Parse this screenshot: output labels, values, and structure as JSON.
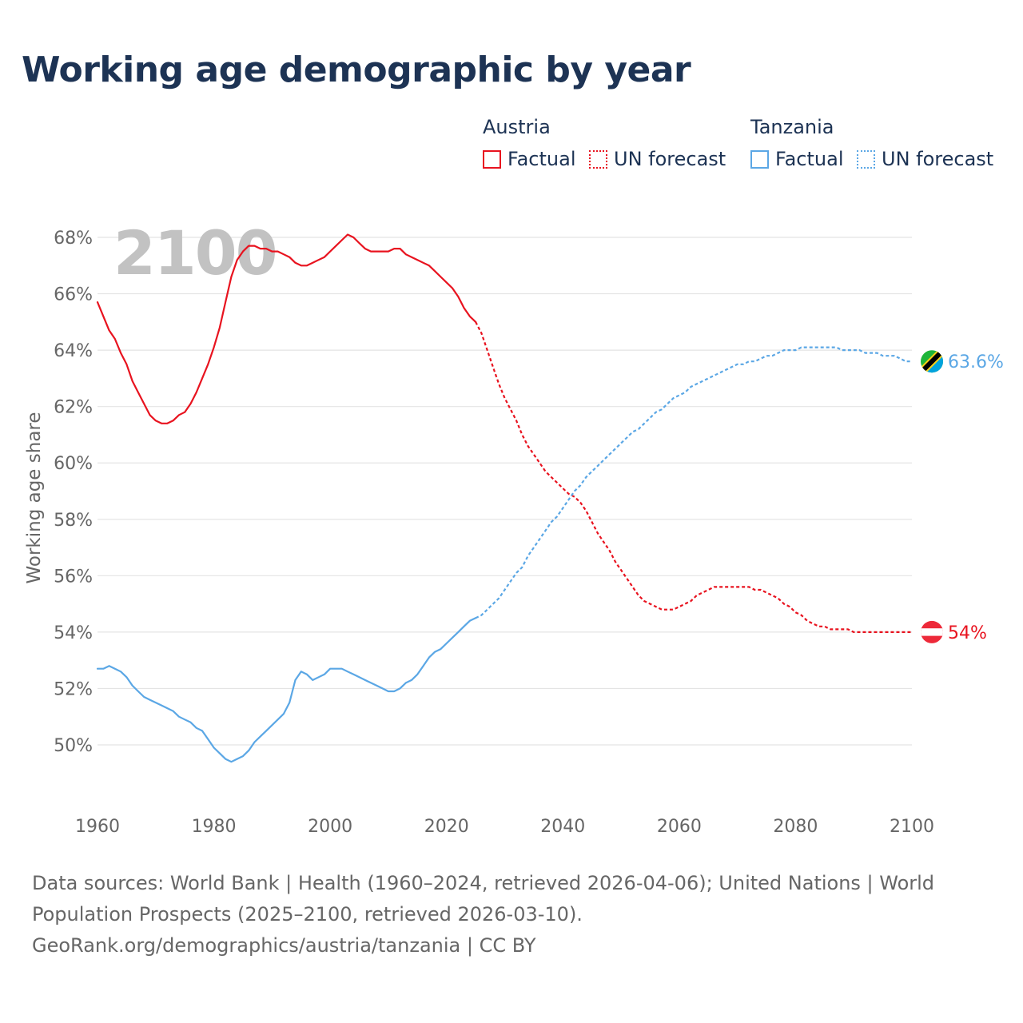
{
  "title": "Working age demographic by year",
  "legend": {
    "austria": {
      "name": "Austria",
      "factual": "Factual",
      "forecast": "UN forecast",
      "color": "#e8131f"
    },
    "tanzania": {
      "name": "Tanzania",
      "factual": "Factual",
      "forecast": "UN forecast",
      "color": "#5ba7e5"
    }
  },
  "year_watermark": "2100",
  "end_labels": {
    "austria": "54%",
    "tanzania": "63.6%"
  },
  "footer": {
    "sources": "Data sources: World Bank | Health (1960–2024, retrieved 2026-04-06); United Nations | World Population Prospects (2025–2100, retrieved 2026-03-10).",
    "credit": "GeoRank.org/demographics/austria/tanzania | CC BY"
  },
  "chart_data": {
    "type": "line",
    "title": "Working age demographic by year",
    "xlabel": "",
    "ylabel": "Working age share",
    "xlim": [
      1960,
      2100
    ],
    "ylim": [
      48,
      68
    ],
    "x_ticks": [
      1960,
      1980,
      2000,
      2020,
      2040,
      2060,
      2080,
      2100
    ],
    "y_ticks": [
      50,
      52,
      54,
      56,
      58,
      60,
      62,
      64,
      66,
      68
    ],
    "y_tick_suffix": "%",
    "series": [
      {
        "name": "Austria — Factual",
        "color": "#e8131f",
        "style": "solid",
        "points": [
          [
            1960,
            65.7
          ],
          [
            1962,
            64.7
          ],
          [
            1963,
            64.4
          ],
          [
            1964,
            63.9
          ],
          [
            1965,
            63.5
          ],
          [
            1966,
            62.9
          ],
          [
            1967,
            62.5
          ],
          [
            1968,
            62.1
          ],
          [
            1969,
            61.7
          ],
          [
            1970,
            61.5
          ],
          [
            1971,
            61.4
          ],
          [
            1972,
            61.4
          ],
          [
            1973,
            61.5
          ],
          [
            1974,
            61.7
          ],
          [
            1975,
            61.8
          ],
          [
            1976,
            62.1
          ],
          [
            1977,
            62.5
          ],
          [
            1978,
            63.0
          ],
          [
            1979,
            63.5
          ],
          [
            1980,
            64.1
          ],
          [
            1981,
            64.8
          ],
          [
            1982,
            65.7
          ],
          [
            1983,
            66.6
          ],
          [
            1984,
            67.2
          ],
          [
            1985,
            67.5
          ],
          [
            1986,
            67.7
          ],
          [
            1987,
            67.7
          ],
          [
            1988,
            67.6
          ],
          [
            1989,
            67.6
          ],
          [
            1990,
            67.5
          ],
          [
            1991,
            67.5
          ],
          [
            1992,
            67.4
          ],
          [
            1993,
            67.3
          ],
          [
            1994,
            67.1
          ],
          [
            1995,
            67.0
          ],
          [
            1996,
            67.0
          ],
          [
            1997,
            67.1
          ],
          [
            1998,
            67.2
          ],
          [
            1999,
            67.3
          ],
          [
            2000,
            67.5
          ],
          [
            2001,
            67.7
          ],
          [
            2002,
            67.9
          ],
          [
            2003,
            68.1
          ],
          [
            2004,
            68.0
          ],
          [
            2005,
            67.8
          ],
          [
            2006,
            67.6
          ],
          [
            2007,
            67.5
          ],
          [
            2008,
            67.5
          ],
          [
            2009,
            67.5
          ],
          [
            2010,
            67.5
          ],
          [
            2011,
            67.6
          ],
          [
            2012,
            67.6
          ],
          [
            2013,
            67.4
          ],
          [
            2014,
            67.3
          ],
          [
            2015,
            67.2
          ],
          [
            2016,
            67.1
          ],
          [
            2017,
            67.0
          ],
          [
            2018,
            66.8
          ],
          [
            2019,
            66.6
          ],
          [
            2020,
            66.4
          ],
          [
            2021,
            66.2
          ],
          [
            2022,
            65.9
          ],
          [
            2023,
            65.5
          ],
          [
            2024,
            65.2
          ],
          [
            2025,
            65.0
          ]
        ]
      },
      {
        "name": "Austria — UN forecast",
        "color": "#e8131f",
        "style": "dashed",
        "points": [
          [
            2025,
            65.0
          ],
          [
            2026,
            64.6
          ],
          [
            2027,
            64.0
          ],
          [
            2028,
            63.4
          ],
          [
            2029,
            62.8
          ],
          [
            2030,
            62.3
          ],
          [
            2031,
            61.9
          ],
          [
            2032,
            61.5
          ],
          [
            2033,
            61.0
          ],
          [
            2034,
            60.6
          ],
          [
            2035,
            60.3
          ],
          [
            2036,
            60.0
          ],
          [
            2037,
            59.7
          ],
          [
            2038,
            59.5
          ],
          [
            2039,
            59.3
          ],
          [
            2040,
            59.1
          ],
          [
            2041,
            58.9
          ],
          [
            2042,
            58.8
          ],
          [
            2043,
            58.6
          ],
          [
            2044,
            58.3
          ],
          [
            2045,
            57.9
          ],
          [
            2046,
            57.5
          ],
          [
            2047,
            57.2
          ],
          [
            2048,
            56.9
          ],
          [
            2049,
            56.5
          ],
          [
            2050,
            56.2
          ],
          [
            2051,
            55.9
          ],
          [
            2052,
            55.6
          ],
          [
            2053,
            55.3
          ],
          [
            2054,
            55.1
          ],
          [
            2055,
            55.0
          ],
          [
            2056,
            54.9
          ],
          [
            2057,
            54.8
          ],
          [
            2058,
            54.8
          ],
          [
            2059,
            54.8
          ],
          [
            2060,
            54.9
          ],
          [
            2061,
            55.0
          ],
          [
            2062,
            55.1
          ],
          [
            2063,
            55.3
          ],
          [
            2064,
            55.4
          ],
          [
            2065,
            55.5
          ],
          [
            2066,
            55.6
          ],
          [
            2067,
            55.6
          ],
          [
            2068,
            55.6
          ],
          [
            2069,
            55.6
          ],
          [
            2070,
            55.6
          ],
          [
            2071,
            55.6
          ],
          [
            2072,
            55.6
          ],
          [
            2073,
            55.5
          ],
          [
            2074,
            55.5
          ],
          [
            2075,
            55.4
          ],
          [
            2076,
            55.3
          ],
          [
            2077,
            55.2
          ],
          [
            2078,
            55.0
          ],
          [
            2079,
            54.9
          ],
          [
            2080,
            54.7
          ],
          [
            2081,
            54.6
          ],
          [
            2082,
            54.4
          ],
          [
            2083,
            54.3
          ],
          [
            2084,
            54.2
          ],
          [
            2085,
            54.2
          ],
          [
            2086,
            54.1
          ],
          [
            2087,
            54.1
          ],
          [
            2088,
            54.1
          ],
          [
            2089,
            54.1
          ],
          [
            2090,
            54.0
          ],
          [
            2091,
            54.0
          ],
          [
            2092,
            54.0
          ],
          [
            2093,
            54.0
          ],
          [
            2094,
            54.0
          ],
          [
            2095,
            54.0
          ],
          [
            2096,
            54.0
          ],
          [
            2097,
            54.0
          ],
          [
            2098,
            54.0
          ],
          [
            2099,
            54.0
          ],
          [
            2100,
            54.0
          ]
        ]
      },
      {
        "name": "Tanzania — Factual",
        "color": "#5ba7e5",
        "style": "solid",
        "points": [
          [
            1960,
            52.7
          ],
          [
            1961,
            52.7
          ],
          [
            1962,
            52.8
          ],
          [
            1963,
            52.7
          ],
          [
            1964,
            52.6
          ],
          [
            1965,
            52.4
          ],
          [
            1966,
            52.1
          ],
          [
            1967,
            51.9
          ],
          [
            1968,
            51.7
          ],
          [
            1969,
            51.6
          ],
          [
            1970,
            51.5
          ],
          [
            1971,
            51.4
          ],
          [
            1972,
            51.3
          ],
          [
            1973,
            51.2
          ],
          [
            1974,
            51.0
          ],
          [
            1975,
            50.9
          ],
          [
            1976,
            50.8
          ],
          [
            1977,
            50.6
          ],
          [
            1978,
            50.5
          ],
          [
            1979,
            50.2
          ],
          [
            1980,
            49.9
          ],
          [
            1981,
            49.7
          ],
          [
            1982,
            49.5
          ],
          [
            1983,
            49.4
          ],
          [
            1984,
            49.5
          ],
          [
            1985,
            49.6
          ],
          [
            1986,
            49.8
          ],
          [
            1987,
            50.1
          ],
          [
            1988,
            50.3
          ],
          [
            1989,
            50.5
          ],
          [
            1990,
            50.7
          ],
          [
            1991,
            50.9
          ],
          [
            1992,
            51.1
          ],
          [
            1993,
            51.5
          ],
          [
            1994,
            52.3
          ],
          [
            1995,
            52.6
          ],
          [
            1996,
            52.5
          ],
          [
            1997,
            52.3
          ],
          [
            1998,
            52.4
          ],
          [
            1999,
            52.5
          ],
          [
            2000,
            52.7
          ],
          [
            2001,
            52.7
          ],
          [
            2002,
            52.7
          ],
          [
            2003,
            52.6
          ],
          [
            2004,
            52.5
          ],
          [
            2005,
            52.4
          ],
          [
            2006,
            52.3
          ],
          [
            2007,
            52.2
          ],
          [
            2008,
            52.1
          ],
          [
            2009,
            52.0
          ],
          [
            2010,
            51.9
          ],
          [
            2011,
            51.9
          ],
          [
            2012,
            52.0
          ],
          [
            2013,
            52.2
          ],
          [
            2014,
            52.3
          ],
          [
            2015,
            52.5
          ],
          [
            2016,
            52.8
          ],
          [
            2017,
            53.1
          ],
          [
            2018,
            53.3
          ],
          [
            2019,
            53.4
          ],
          [
            2020,
            53.6
          ],
          [
            2021,
            53.8
          ],
          [
            2022,
            54.0
          ],
          [
            2023,
            54.2
          ],
          [
            2024,
            54.4
          ],
          [
            2025,
            54.5
          ]
        ]
      },
      {
        "name": "Tanzania — UN forecast",
        "color": "#5ba7e5",
        "style": "dashed",
        "points": [
          [
            2025,
            54.5
          ],
          [
            2026,
            54.6
          ],
          [
            2027,
            54.8
          ],
          [
            2028,
            55.0
          ],
          [
            2029,
            55.2
          ],
          [
            2030,
            55.5
          ],
          [
            2031,
            55.8
          ],
          [
            2032,
            56.1
          ],
          [
            2033,
            56.3
          ],
          [
            2034,
            56.7
          ],
          [
            2035,
            57.0
          ],
          [
            2036,
            57.3
          ],
          [
            2037,
            57.6
          ],
          [
            2038,
            57.9
          ],
          [
            2039,
            58.1
          ],
          [
            2040,
            58.4
          ],
          [
            2041,
            58.7
          ],
          [
            2042,
            59.0
          ],
          [
            2043,
            59.2
          ],
          [
            2044,
            59.5
          ],
          [
            2045,
            59.7
          ],
          [
            2046,
            59.9
          ],
          [
            2047,
            60.1
          ],
          [
            2048,
            60.3
          ],
          [
            2049,
            60.5
          ],
          [
            2050,
            60.7
          ],
          [
            2051,
            60.9
          ],
          [
            2052,
            61.1
          ],
          [
            2053,
            61.2
          ],
          [
            2054,
            61.4
          ],
          [
            2055,
            61.6
          ],
          [
            2056,
            61.8
          ],
          [
            2057,
            61.9
          ],
          [
            2058,
            62.1
          ],
          [
            2059,
            62.3
          ],
          [
            2060,
            62.4
          ],
          [
            2061,
            62.5
          ],
          [
            2062,
            62.7
          ],
          [
            2063,
            62.8
          ],
          [
            2064,
            62.9
          ],
          [
            2065,
            63.0
          ],
          [
            2066,
            63.1
          ],
          [
            2067,
            63.2
          ],
          [
            2068,
            63.3
          ],
          [
            2069,
            63.4
          ],
          [
            2070,
            63.5
          ],
          [
            2071,
            63.5
          ],
          [
            2072,
            63.6
          ],
          [
            2073,
            63.6
          ],
          [
            2074,
            63.7
          ],
          [
            2075,
            63.8
          ],
          [
            2076,
            63.8
          ],
          [
            2077,
            63.9
          ],
          [
            2078,
            64.0
          ],
          [
            2079,
            64.0
          ],
          [
            2080,
            64.0
          ],
          [
            2081,
            64.1
          ],
          [
            2082,
            64.1
          ],
          [
            2083,
            64.1
          ],
          [
            2084,
            64.1
          ],
          [
            2085,
            64.1
          ],
          [
            2086,
            64.1
          ],
          [
            2087,
            64.1
          ],
          [
            2088,
            64.0
          ],
          [
            2089,
            64.0
          ],
          [
            2090,
            64.0
          ],
          [
            2091,
            64.0
          ],
          [
            2092,
            63.9
          ],
          [
            2093,
            63.9
          ],
          [
            2094,
            63.9
          ],
          [
            2095,
            63.8
          ],
          [
            2096,
            63.8
          ],
          [
            2097,
            63.8
          ],
          [
            2098,
            63.7
          ],
          [
            2099,
            63.6
          ],
          [
            2100,
            63.6
          ]
        ]
      }
    ]
  }
}
